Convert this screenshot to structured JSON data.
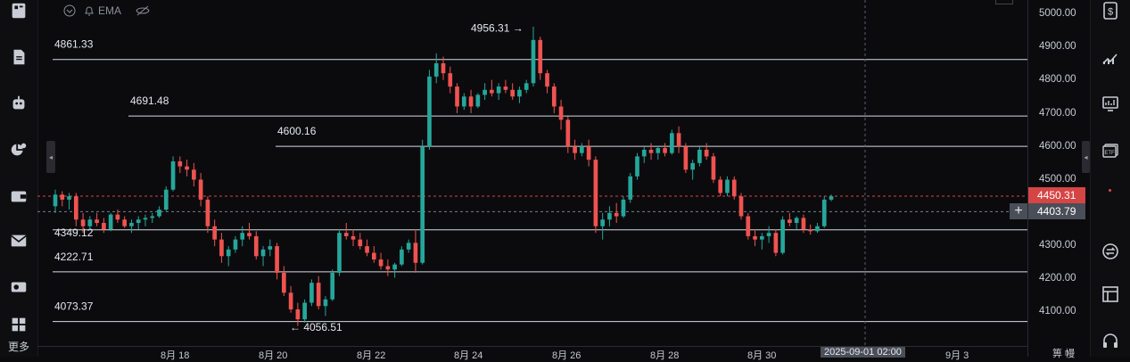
{
  "indicator_bar": {
    "ema_label": "EMA",
    "icons": [
      "chevron-down-circle-icon",
      "alert-bell-icon",
      "eye-off-icon"
    ]
  },
  "price_axis": {
    "ticks": [
      "5000.00",
      "4900.00",
      "4800.00",
      "4700.00",
      "4600.00",
      "4500.00",
      "4300.00",
      "4200.00",
      "4100.00"
    ],
    "current_price": "4450.31",
    "cursor_price": "4403.79",
    "current_color": "#d64545"
  },
  "time_axis": {
    "ticks": [
      "8月 18",
      "8月 20",
      "8月 22",
      "8月 24",
      "8月 26",
      "8月 28",
      "8月 30",
      "9月 3"
    ],
    "cursor_label": "2025-09-01 02:00",
    "corner_label": "箅 幔"
  },
  "levels": [
    {
      "value": 4861.33,
      "label": "4861.33"
    },
    {
      "value": 4691.48,
      "label": "4691.48"
    },
    {
      "value": 4600.16,
      "label": "4600.16"
    },
    {
      "value": 4349.12,
      "label": "4349.12"
    },
    {
      "value": 4222.71,
      "label": "4222.71"
    },
    {
      "value": 4073.37,
      "label": "4073.37"
    }
  ],
  "annotations": {
    "high_label": "4956.31 →",
    "low_label": "← 4056.51"
  },
  "left_toolbar": {
    "icons": [
      "news-icon",
      "document-icon",
      "robot-icon",
      "analytics-icon",
      "wallet-icon",
      "mail-icon",
      "ticket-icon",
      "apps-grid-icon"
    ],
    "more_label": "更多"
  },
  "right_toolbar": {
    "icons": [
      "dollar-icon",
      "trend-chart-icon",
      "monitor-chart-icon",
      "etf-icon",
      "swap-icon",
      "layout-icon",
      "headset-icon"
    ]
  },
  "colors": {
    "up": "#26a69a",
    "down": "#ef5350",
    "background": "#0b0b0e"
  },
  "chart_data": {
    "type": "candlestick",
    "unit": "USD",
    "ylim": [
      4040,
      5030
    ],
    "candles": [
      [
        4420,
        4470,
        4400,
        4455
      ],
      [
        4455,
        4465,
        4420,
        4440
      ],
      [
        4440,
        4460,
        4410,
        4450
      ],
      [
        4450,
        4460,
        4360,
        4380
      ],
      [
        4380,
        4400,
        4340,
        4360
      ],
      [
        4360,
        4390,
        4350,
        4380
      ],
      [
        4380,
        4400,
        4360,
        4370
      ],
      [
        4370,
        4385,
        4340,
        4350
      ],
      [
        4350,
        4400,
        4345,
        4395
      ],
      [
        4395,
        4410,
        4370,
        4380
      ],
      [
        4380,
        4390,
        4355,
        4360
      ],
      [
        4360,
        4380,
        4340,
        4370
      ],
      [
        4370,
        4390,
        4350,
        4380
      ],
      [
        4380,
        4395,
        4360,
        4385
      ],
      [
        4385,
        4400,
        4370,
        4390
      ],
      [
        4390,
        4420,
        4385,
        4410
      ],
      [
        4410,
        4480,
        4405,
        4470
      ],
      [
        4470,
        4570,
        4465,
        4555
      ],
      [
        4555,
        4570,
        4520,
        4540
      ],
      [
        4540,
        4560,
        4510,
        4530
      ],
      [
        4530,
        4550,
        4480,
        4500
      ],
      [
        4500,
        4520,
        4420,
        4440
      ],
      [
        4440,
        4450,
        4340,
        4360
      ],
      [
        4360,
        4380,
        4300,
        4320
      ],
      [
        4320,
        4340,
        4250,
        4270
      ],
      [
        4270,
        4300,
        4240,
        4290
      ],
      [
        4290,
        4330,
        4280,
        4320
      ],
      [
        4320,
        4360,
        4300,
        4340
      ],
      [
        4340,
        4370,
        4320,
        4330
      ],
      [
        4330,
        4345,
        4260,
        4270
      ],
      [
        4270,
        4300,
        4240,
        4290
      ],
      [
        4290,
        4320,
        4270,
        4300
      ],
      [
        4300,
        4310,
        4200,
        4220
      ],
      [
        4220,
        4240,
        4150,
        4160
      ],
      [
        4160,
        4180,
        4100,
        4110
      ],
      [
        4110,
        4130,
        4060,
        4080
      ],
      [
        4080,
        4140,
        4070,
        4130
      ],
      [
        4130,
        4200,
        4120,
        4190
      ],
      [
        4190,
        4210,
        4110,
        4120
      ],
      [
        4120,
        4150,
        4090,
        4140
      ],
      [
        4140,
        4230,
        4135,
        4220
      ],
      [
        4220,
        4350,
        4210,
        4340
      ],
      [
        4340,
        4370,
        4320,
        4330
      ],
      [
        4330,
        4350,
        4300,
        4320
      ],
      [
        4320,
        4340,
        4290,
        4300
      ],
      [
        4300,
        4320,
        4270,
        4280
      ],
      [
        4280,
        4300,
        4250,
        4260
      ],
      [
        4260,
        4280,
        4230,
        4240
      ],
      [
        4240,
        4260,
        4210,
        4230
      ],
      [
        4230,
        4250,
        4205,
        4245
      ],
      [
        4245,
        4300,
        4240,
        4290
      ],
      [
        4290,
        4320,
        4280,
        4310
      ],
      [
        4310,
        4350,
        4220,
        4250
      ],
      [
        4250,
        4620,
        4245,
        4600
      ],
      [
        4600,
        4830,
        4590,
        4810
      ],
      [
        4810,
        4880,
        4790,
        4850
      ],
      [
        4850,
        4870,
        4800,
        4820
      ],
      [
        4820,
        4840,
        4760,
        4780
      ],
      [
        4780,
        4790,
        4700,
        4720
      ],
      [
        4720,
        4760,
        4710,
        4750
      ],
      [
        4750,
        4770,
        4700,
        4720
      ],
      [
        4720,
        4760,
        4715,
        4755
      ],
      [
        4755,
        4790,
        4740,
        4770
      ],
      [
        4770,
        4800,
        4750,
        4760
      ],
      [
        4760,
        4790,
        4740,
        4780
      ],
      [
        4780,
        4800,
        4760,
        4770
      ],
      [
        4770,
        4790,
        4740,
        4750
      ],
      [
        4750,
        4780,
        4730,
        4770
      ],
      [
        4770,
        4800,
        4760,
        4790
      ],
      [
        4790,
        4960,
        4780,
        4920
      ],
      [
        4920,
        4930,
        4800,
        4820
      ],
      [
        4820,
        4830,
        4760,
        4780
      ],
      [
        4780,
        4790,
        4700,
        4720
      ],
      [
        4720,
        4740,
        4650,
        4680
      ],
      [
        4680,
        4690,
        4580,
        4600
      ],
      [
        4600,
        4620,
        4560,
        4580
      ],
      [
        4580,
        4610,
        4570,
        4600
      ],
      [
        4600,
        4620,
        4540,
        4560
      ],
      [
        4560,
        4570,
        4340,
        4360
      ],
      [
        4360,
        4400,
        4320,
        4380
      ],
      [
        4380,
        4420,
        4360,
        4400
      ],
      [
        4400,
        4430,
        4370,
        4390
      ],
      [
        4390,
        4450,
        4385,
        4440
      ],
      [
        4440,
        4520,
        4430,
        4510
      ],
      [
        4510,
        4580,
        4500,
        4570
      ],
      [
        4570,
        4600,
        4550,
        4590
      ],
      [
        4590,
        4610,
        4560,
        4580
      ],
      [
        4580,
        4600,
        4560,
        4595
      ],
      [
        4595,
        4610,
        4570,
        4580
      ],
      [
        4580,
        4650,
        4575,
        4640
      ],
      [
        4640,
        4660,
        4580,
        4600
      ],
      [
        4600,
        4610,
        4520,
        4530
      ],
      [
        4530,
        4560,
        4500,
        4550
      ],
      [
        4550,
        4600,
        4540,
        4590
      ],
      [
        4590,
        4610,
        4560,
        4570
      ],
      [
        4570,
        4580,
        4490,
        4500
      ],
      [
        4500,
        4510,
        4450,
        4460
      ],
      [
        4460,
        4510,
        4450,
        4500
      ],
      [
        4500,
        4510,
        4440,
        4450
      ],
      [
        4450,
        4460,
        4380,
        4390
      ],
      [
        4390,
        4400,
        4320,
        4330
      ],
      [
        4330,
        4350,
        4300,
        4320
      ],
      [
        4320,
        4340,
        4290,
        4330
      ],
      [
        4330,
        4360,
        4310,
        4340
      ],
      [
        4340,
        4350,
        4270,
        4280
      ],
      [
        4280,
        4390,
        4275,
        4380
      ],
      [
        4380,
        4400,
        4360,
        4370
      ],
      [
        4370,
        4390,
        4350,
        4385
      ],
      [
        4385,
        4395,
        4340,
        4350
      ],
      [
        4350,
        4365,
        4335,
        4345
      ],
      [
        4345,
        4370,
        4340,
        4360
      ],
      [
        4360,
        4450,
        4355,
        4440
      ],
      [
        4440,
        4455,
        4435,
        4450
      ]
    ],
    "price_levels": [
      4861.33,
      4691.48,
      4600.16,
      4349.12,
      4222.71,
      4073.37
    ],
    "high": 4956.31,
    "low": 4056.51,
    "current_price": 4450.31,
    "cursor_price": 4403.79,
    "cursor_time": "2025-09-01 02:00"
  }
}
